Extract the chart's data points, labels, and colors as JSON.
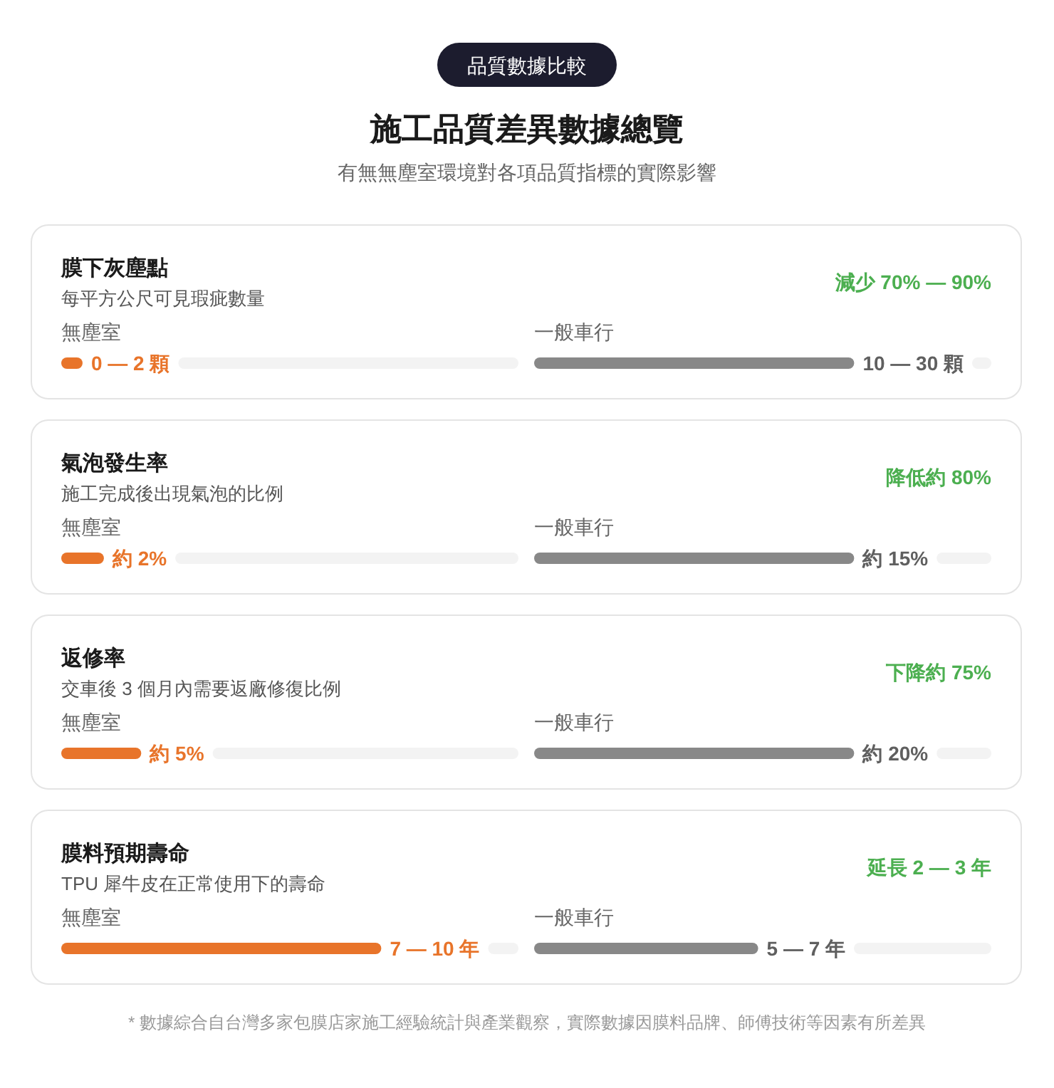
{
  "chart_data": [
    {
      "type": "other",
      "title": "施工品質差異數據總覽",
      "subtitle": "有無無塵室環境對各項品質指標的實際影響",
      "annotations": [
        "品質數據比較"
      ]
    },
    {
      "type": "bar",
      "orientation": "horizontal",
      "title": "膜下灰塵點",
      "subtitle": "每平方公尺可見瑕疵數量",
      "annotations": [
        "減少 70% — 90%"
      ],
      "categories": [
        "無塵室"
      ],
      "values": [
        2
      ],
      "colors": [
        "#e8742a"
      ],
      "value_labels": [
        "0 — 2 顆"
      ]
    },
    {
      "type": "bar",
      "orientation": "horizontal",
      "categories": [
        "一般車行"
      ],
      "values": [
        30
      ],
      "colors": [
        "#888888"
      ],
      "value_labels": [
        "10 — 30 顆"
      ]
    },
    {
      "type": "bar",
      "orientation": "horizontal",
      "title": "氣泡發生率",
      "subtitle": "施工完成後出現氣泡的比例",
      "annotations": [
        "降低約 80%"
      ],
      "categories": [
        "無塵室"
      ],
      "values": [
        2
      ],
      "colors": [
        "#e8742a"
      ],
      "value_labels": [
        "約 2%"
      ]
    },
    {
      "type": "bar",
      "orientation": "horizontal",
      "categories": [
        "一般車行"
      ],
      "values": [
        15
      ],
      "colors": [
        "#888888"
      ],
      "value_labels": [
        "約 15%"
      ]
    },
    {
      "type": "bar",
      "orientation": "horizontal",
      "title": "返修率",
      "subtitle": "交車後 3 個月內需要返廠修復比例",
      "annotations": [
        "下降約 75%"
      ],
      "categories": [
        "無塵室"
      ],
      "values": [
        5
      ],
      "colors": [
        "#e8742a"
      ],
      "value_labels": [
        "約 5%"
      ]
    },
    {
      "type": "bar",
      "orientation": "horizontal",
      "categories": [
        "一般車行"
      ],
      "values": [
        20
      ],
      "colors": [
        "#888888"
      ],
      "value_labels": [
        "約 20%"
      ]
    },
    {
      "type": "bar",
      "orientation": "horizontal",
      "title": "膜料預期壽命",
      "subtitle": "TPU 犀牛皮在正常使用下的壽命",
      "annotations": [
        "延長 2 — 3 年"
      ],
      "categories": [
        "無塵室"
      ],
      "values": [
        10
      ],
      "colors": [
        "#e8742a"
      ],
      "value_labels": [
        "7 — 10 年"
      ]
    },
    {
      "type": "bar",
      "orientation": "horizontal",
      "categories": [
        "一般車行"
      ],
      "values": [
        7
      ],
      "colors": [
        "#888888"
      ],
      "value_labels": [
        "5 — 7 年"
      ]
    },
    {
      "type": "other",
      "annotations": [
        "* 數據綜合自台灣多家包膜店家施工經驗統計與產業觀察，實際數據因膜料品牌、師傅技術等因素有所差異"
      ]
    }
  ]
}
